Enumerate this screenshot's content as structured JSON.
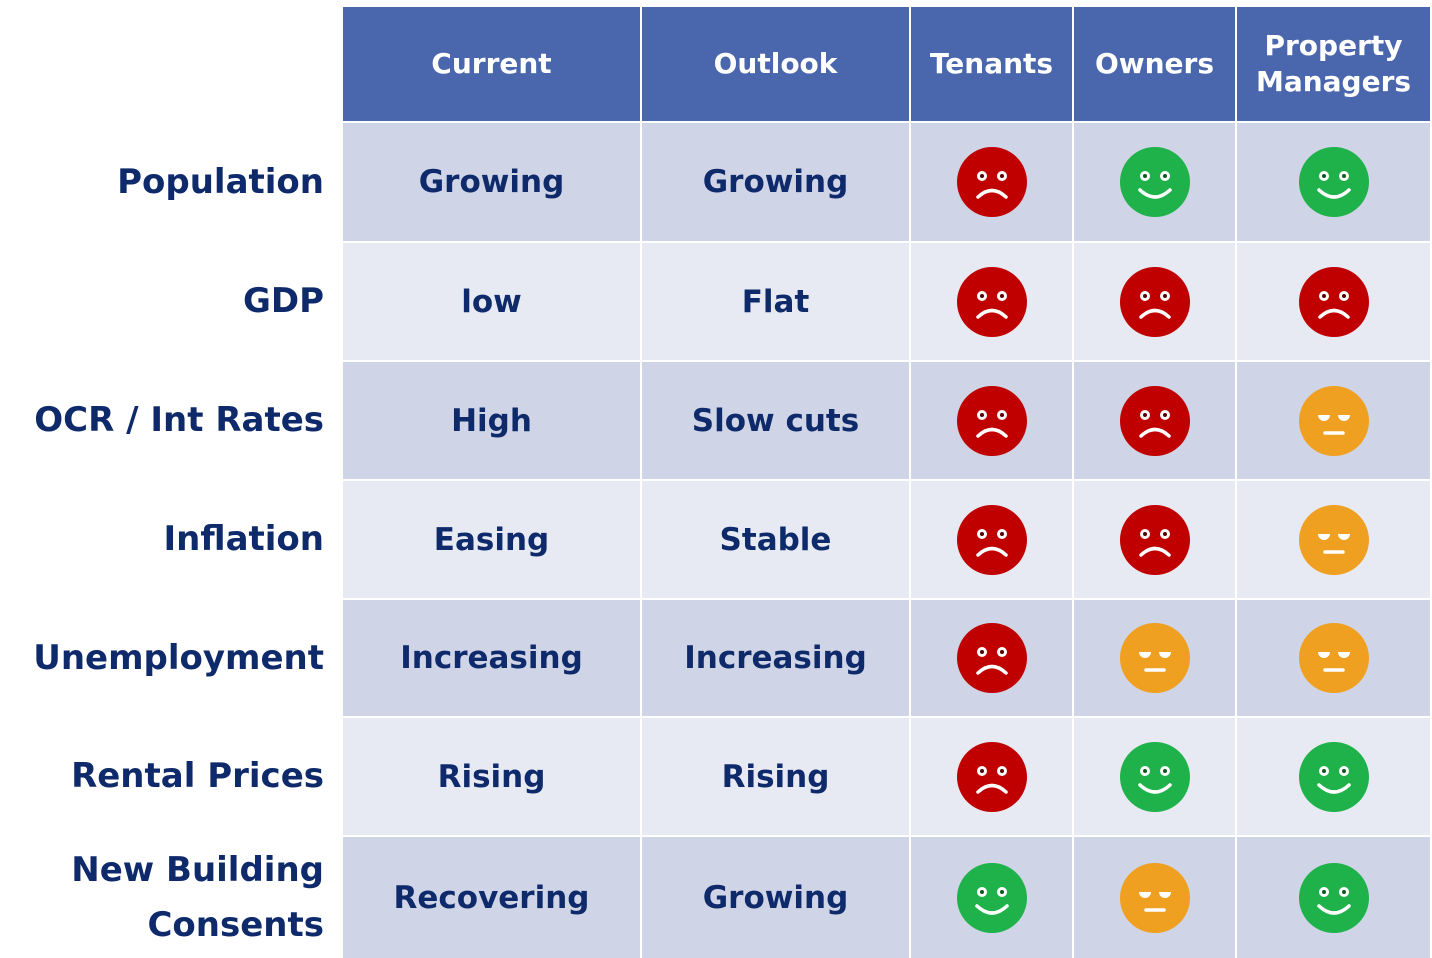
{
  "header": {
    "columns": [
      "Current",
      "Outlook",
      "Tenants",
      "Owners",
      "Property Managers"
    ]
  },
  "rows": [
    {
      "label": "Population",
      "current": "Growing",
      "outlook": "Growing"
    },
    {
      "label": "GDP",
      "current": "low",
      "outlook": "Flat"
    },
    {
      "label": "OCR / Int Rates",
      "current": "High",
      "outlook": "Slow cuts"
    },
    {
      "label": "Inflation",
      "current": "Easing",
      "outlook": "Stable"
    },
    {
      "label": "Unemployment",
      "current": "Increasing",
      "outlook": "Increasing"
    },
    {
      "label": "Rental Prices",
      "current": "Rising",
      "outlook": "Rising"
    },
    {
      "label": "New Building Consents",
      "current": "Recovering",
      "outlook": "Growing"
    }
  ]
}
